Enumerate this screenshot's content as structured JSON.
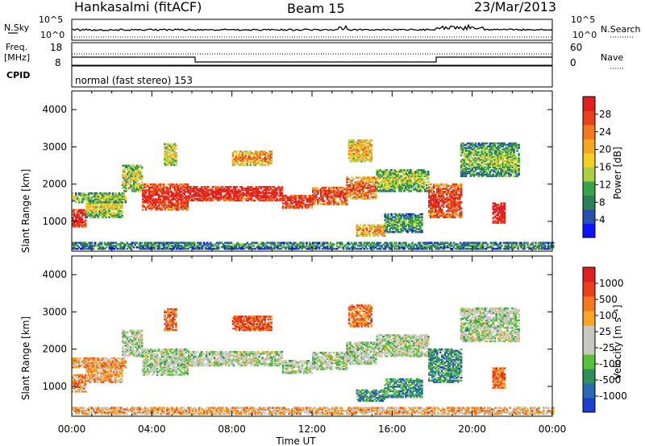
{
  "header": {
    "station": "Hankasalmi (fitACF)",
    "beam": "Beam 15",
    "date": "23/Mar/2013"
  },
  "strip_panels": {
    "nsky": {
      "label": "N.Sky",
      "tick_top": "10^5",
      "tick_bottom": "10^0"
    },
    "nsearch": {
      "label": "N.Search",
      "tick_top": "10^5",
      "tick_bottom": "10^0"
    },
    "freq": {
      "label_line1": "Freq.",
      "label_line2": "[MHz]",
      "tick_top": "18",
      "tick_bottom": "8"
    },
    "nave": {
      "label": "Nave",
      "tick_top": "60",
      "tick_bottom": "0"
    },
    "cpid": {
      "label": "CPID",
      "mode": "normal (fast stereo) 153"
    }
  },
  "chart_data": [
    {
      "type": "heatmap",
      "name": "power",
      "x_tick_labels": [
        "00:00",
        "04:00",
        "08:00",
        "12:00",
        "16:00",
        "20:00",
        "00:00"
      ],
      "x_range_hours": [
        0,
        24
      ],
      "ylabel": "Slant Range [km]",
      "y_ticks": [
        1000,
        2000,
        3000,
        4000
      ],
      "ylim": [
        200,
        4500
      ],
      "colorbar": {
        "label": "Power [dB]",
        "ticks": [
          "4",
          "8",
          "12",
          "16",
          "20",
          "24",
          "28"
        ],
        "colors": [
          "#0a14ff",
          "#2a4fb0",
          "#2e7f58",
          "#3aa24a",
          "#a8d040",
          "#f0d020",
          "#f5a623",
          "#f27a1c",
          "#e8401a",
          "#e02020"
        ]
      },
      "bands": [
        {
          "t0": 0.0,
          "t1": 0.7,
          "r0": 850,
          "r1": 1300,
          "level": 0.85
        },
        {
          "t0": 0.7,
          "t1": 2.5,
          "r0": 1100,
          "r1": 1650,
          "level": 0.35
        },
        {
          "t0": 0.0,
          "t1": 2.7,
          "r0": 1500,
          "r1": 1750,
          "level": 0.3
        },
        {
          "t0": 2.5,
          "t1": 3.5,
          "r0": 1800,
          "r1": 2500,
          "level": 0.35
        },
        {
          "t0": 3.5,
          "t1": 5.8,
          "r0": 1300,
          "r1": 2000,
          "level": 0.8
        },
        {
          "t0": 5.8,
          "t1": 10.5,
          "r0": 1550,
          "r1": 1950,
          "level": 0.85
        },
        {
          "t0": 10.5,
          "t1": 12.0,
          "r0": 1350,
          "r1": 1700,
          "level": 0.8
        },
        {
          "t0": 12.0,
          "t1": 13.7,
          "r0": 1450,
          "r1": 1900,
          "level": 0.75
        },
        {
          "t0": 13.7,
          "t1": 15.2,
          "r0": 1600,
          "r1": 2200,
          "level": 0.65
        },
        {
          "t0": 15.2,
          "t1": 17.8,
          "r0": 1800,
          "r1": 2400,
          "level": 0.3
        },
        {
          "t0": 17.8,
          "t1": 19.4,
          "r0": 1100,
          "r1": 2000,
          "level": 0.75
        },
        {
          "t0": 19.4,
          "t1": 22.3,
          "r0": 2200,
          "r1": 3100,
          "level": 0.25
        },
        {
          "t0": 21.0,
          "t1": 21.6,
          "r0": 950,
          "r1": 1500,
          "level": 0.9
        },
        {
          "t0": 4.6,
          "t1": 5.2,
          "r0": 2500,
          "r1": 3100,
          "level": 0.4
        },
        {
          "t0": 8.0,
          "t1": 10.0,
          "r0": 2500,
          "r1": 2900,
          "level": 0.55
        },
        {
          "t0": 13.8,
          "t1": 15.0,
          "r0": 2600,
          "r1": 3200,
          "level": 0.5
        },
        {
          "t0": 14.2,
          "t1": 15.6,
          "r0": 600,
          "r1": 900,
          "level": 0.55
        },
        {
          "t0": 15.6,
          "t1": 17.5,
          "r0": 700,
          "r1": 1200,
          "level": 0.2
        },
        {
          "t0": 0.0,
          "t1": 24.0,
          "r0": 250,
          "r1": 450,
          "level": 0.15
        }
      ]
    },
    {
      "type": "heatmap",
      "name": "velocity",
      "x_tick_labels": [
        "00:00",
        "04:00",
        "08:00",
        "12:00",
        "16:00",
        "20:00",
        "00:00"
      ],
      "x_range_hours": [
        0,
        24
      ],
      "xlabel": "Time UT",
      "ylabel": "Slant Range [km]",
      "y_ticks": [
        1000,
        2000,
        3000,
        4000
      ],
      "ylim": [
        200,
        4500
      ],
      "colorbar": {
        "label": "Velocity [m s⁻¹]",
        "ticks": [
          "1000",
          "500",
          "100",
          "25",
          "-25",
          "-100",
          "-500",
          "-1000"
        ],
        "colors": [
          "#1a3fd0",
          "#2a6ab0",
          "#2e8f58",
          "#5abf3a",
          "#c8c8c0",
          "#c8c8c0",
          "#f5a623",
          "#f27a1c",
          "#e8401a",
          "#e02020"
        ]
      },
      "bands": [
        {
          "t0": 0.0,
          "t1": 0.7,
          "r0": 850,
          "r1": 1300,
          "level": 0.72
        },
        {
          "t0": 0.7,
          "t1": 2.5,
          "r0": 1100,
          "r1": 1650,
          "level": 0.65
        },
        {
          "t0": 0.0,
          "t1": 2.7,
          "r0": 1500,
          "r1": 1750,
          "level": 0.68
        },
        {
          "t0": 2.5,
          "t1": 3.5,
          "r0": 1800,
          "r1": 2500,
          "level": 0.45
        },
        {
          "t0": 3.5,
          "t1": 5.8,
          "r0": 1300,
          "r1": 2000,
          "level": 0.45
        },
        {
          "t0": 5.8,
          "t1": 10.5,
          "r0": 1550,
          "r1": 1950,
          "level": 0.45
        },
        {
          "t0": 10.5,
          "t1": 12.0,
          "r0": 1350,
          "r1": 1700,
          "level": 0.45
        },
        {
          "t0": 12.0,
          "t1": 13.7,
          "r0": 1450,
          "r1": 1900,
          "level": 0.45
        },
        {
          "t0": 13.7,
          "t1": 15.2,
          "r0": 1600,
          "r1": 2200,
          "level": 0.45
        },
        {
          "t0": 15.2,
          "t1": 17.8,
          "r0": 1800,
          "r1": 2400,
          "level": 0.45
        },
        {
          "t0": 17.8,
          "t1": 19.4,
          "r0": 1100,
          "r1": 2000,
          "level": 0.25
        },
        {
          "t0": 19.4,
          "t1": 22.3,
          "r0": 2200,
          "r1": 3100,
          "level": 0.45
        },
        {
          "t0": 21.0,
          "t1": 21.6,
          "r0": 950,
          "r1": 1500,
          "level": 0.8
        },
        {
          "t0": 4.6,
          "t1": 5.2,
          "r0": 2500,
          "r1": 3100,
          "level": 0.8
        },
        {
          "t0": 8.0,
          "t1": 10.0,
          "r0": 2500,
          "r1": 2900,
          "level": 0.85
        },
        {
          "t0": 13.8,
          "t1": 15.0,
          "r0": 2600,
          "r1": 3200,
          "level": 0.75
        },
        {
          "t0": 14.2,
          "t1": 15.6,
          "r0": 600,
          "r1": 900,
          "level": 0.25
        },
        {
          "t0": 15.6,
          "t1": 17.5,
          "r0": 700,
          "r1": 1200,
          "level": 0.25
        },
        {
          "t0": 0.0,
          "t1": 24.0,
          "r0": 250,
          "r1": 450,
          "level": 0.65
        }
      ]
    }
  ]
}
